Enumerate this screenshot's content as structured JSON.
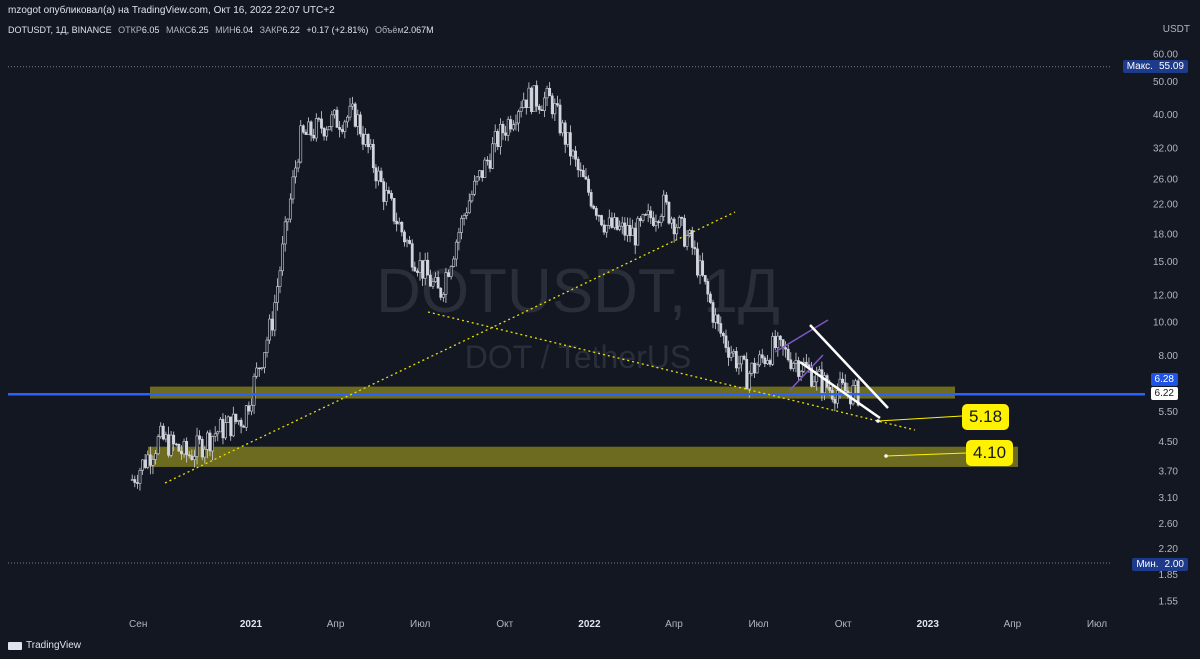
{
  "header": {
    "publish_line": "mzogot опубликовал(а) на TradingView.com, Окт 16, 2022 22:07 UTC+2",
    "symbol_info": "DOTUSDT, 1Д, BINANCE",
    "open_label": "ОТКР",
    "open_value": "6.05",
    "high_label": "МАКС",
    "high_value": "6.25",
    "low_label": "МИН",
    "low_value": "6.04",
    "close_label": "ЗАКР",
    "close_value": "6.22",
    "change": "+0.17 (+2.81%)",
    "volume_label": "Объём",
    "volume_value": "2.067M",
    "currency": "USDT"
  },
  "watermark": {
    "symbol": "DOTUSDT, 1Д",
    "name": "DOT / TetherUS"
  },
  "price_axis": {
    "ticks": [
      "60.00",
      "50.00",
      "40.00",
      "32.00",
      "26.00",
      "22.00",
      "18.00",
      "15.00",
      "12.00",
      "10.00",
      "8.00",
      "6.22",
      "5.50",
      "4.50",
      "3.70",
      "3.10",
      "2.60",
      "2.20",
      "1.85",
      "1.55"
    ],
    "max_label": "Макс.",
    "max_value": "55.09",
    "min_label": "Мин.",
    "min_value": "2.00",
    "level_value": "6.28",
    "last_value": "6.22"
  },
  "time_axis": {
    "labels": [
      "Сен",
      "2021",
      "Апр",
      "Июл",
      "Окт",
      "2022",
      "Апр",
      "Июл",
      "Окт",
      "2023",
      "Апр",
      "Июл"
    ],
    "bold": [
      "2021",
      "2022",
      "2023"
    ]
  },
  "annotations": {
    "callout_1": "5.18",
    "callout_2": "4.10"
  },
  "footer": {
    "brand": "TradingView"
  },
  "colors": {
    "background": "#131722",
    "candle": "#d1d4dc",
    "horizontal_line": "#2962ff",
    "zone": "#7c7a1f",
    "trendline": "#e7e000",
    "channel": "#7e57c2",
    "wedge": "#ffffff",
    "callout": "#fff200"
  },
  "chart_data": {
    "type": "candlestick",
    "symbol": "DOTUSDT",
    "timeframe": "1D",
    "scale": "log",
    "ylim": [
      1.5,
      62
    ],
    "x": [
      "2020-08",
      "2020-09",
      "2020-10",
      "2020-11",
      "2020-12",
      "2021-01",
      "2021-02",
      "2021-03",
      "2021-04",
      "2021-05",
      "2021-06",
      "2021-07",
      "2021-08",
      "2021-09",
      "2021-10",
      "2021-11",
      "2021-12",
      "2022-01",
      "2022-02",
      "2022-03",
      "2022-04",
      "2022-05",
      "2022-06",
      "2022-07",
      "2022-08",
      "2022-09",
      "2022-10"
    ],
    "close_approx": [
      3.5,
      4.6,
      4.1,
      4.8,
      5.3,
      10.0,
      34.0,
      38.0,
      40.0,
      24.0,
      16.0,
      12.0,
      22.0,
      33.0,
      45.0,
      44.0,
      27.0,
      19.0,
      18.0,
      22.0,
      17.0,
      9.5,
      7.0,
      8.5,
      7.5,
      6.4,
      6.22
    ],
    "horizontal_levels": [
      6.28,
      6.22
    ],
    "support_zones": [
      [
        6.0,
        6.5
      ],
      [
        3.8,
        4.35
      ]
    ],
    "targets": [
      5.18,
      4.1
    ],
    "all_time_high": 55.09,
    "all_time_low": 2.0
  }
}
